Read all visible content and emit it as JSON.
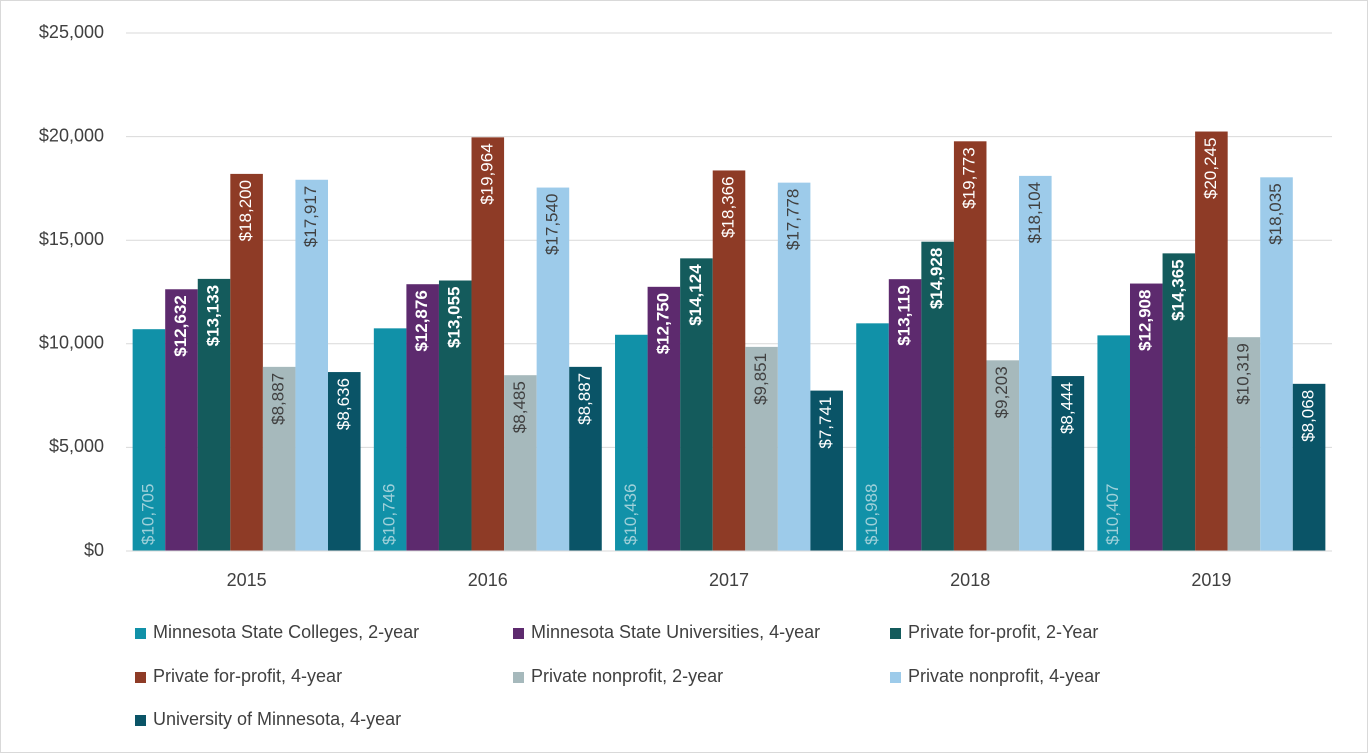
{
  "chart_data": {
    "type": "bar",
    "categories": [
      "2015",
      "2016",
      "2017",
      "2018",
      "2019"
    ],
    "ylim": [
      0,
      25000
    ],
    "yticks": [
      {
        "value": 0,
        "label": "$0"
      },
      {
        "value": 5000,
        "label": "$5,000"
      },
      {
        "value": 10000,
        "label": "$10,000"
      },
      {
        "value": 15000,
        "label": "$15,000"
      },
      {
        "value": 20000,
        "label": "$20,000"
      },
      {
        "value": 25000,
        "label": "$25,000"
      }
    ],
    "grid": true,
    "legend": "bottom",
    "series": [
      {
        "name": "Minnesota State Colleges, 2-year",
        "color": "#1191a8",
        "label_color": "#9fd0d9",
        "label_bold": false,
        "label_position": "inside_base",
        "values": [
          10705,
          10746,
          10436,
          10988,
          10407
        ],
        "value_labels": [
          "$10,705",
          "$10,746",
          "$10,436",
          "$10,988",
          "$10,407"
        ]
      },
      {
        "name": "Minnesota State Universities, 4-year",
        "color": "#5d2a6e",
        "label_color": "#ffffff",
        "label_bold": true,
        "label_position": "inside_end",
        "values": [
          12632,
          12876,
          12750,
          13119,
          12908
        ],
        "value_labels": [
          "$12,632",
          "$12,876",
          "$12,750",
          "$13,119",
          "$12,908"
        ]
      },
      {
        "name": "Private for-profit, 2-Year",
        "color": "#145b5c",
        "label_color": "#ffffff",
        "label_bold": true,
        "label_position": "inside_end",
        "values": [
          13133,
          13055,
          14124,
          14928,
          14365
        ],
        "value_labels": [
          "$13,133",
          "$13,055",
          "$14,124",
          "$14,928",
          "$14,365"
        ]
      },
      {
        "name": "Private for-profit, 4-year",
        "color": "#8e3b26",
        "label_color": "#ffffff",
        "label_bold": false,
        "label_position": "inside_end",
        "values": [
          18200,
          19964,
          18366,
          19773,
          20245
        ],
        "value_labels": [
          "$18,200",
          "$19,964",
          "$18,366",
          "$19,773",
          "$20,245"
        ]
      },
      {
        "name": "Private nonprofit, 2-year",
        "color": "#a6b9bc",
        "label_color": "#404040",
        "label_bold": false,
        "label_position": "inside_end",
        "values": [
          8887,
          8485,
          9851,
          9203,
          10319
        ],
        "value_labels": [
          "$8,887",
          "$8,485",
          "$9,851",
          "$9,203",
          "$10,319"
        ]
      },
      {
        "name": "Private nonprofit, 4-year",
        "color": "#9dcbea",
        "label_color": "#404040",
        "label_bold": false,
        "label_position": "inside_end",
        "values": [
          17917,
          17540,
          17778,
          18104,
          18035
        ],
        "value_labels": [
          "$17,917",
          "$17,540",
          "$17,778",
          "$18,104",
          "$18,035"
        ]
      },
      {
        "name": "University of Minnesota, 4-year",
        "color": "#0a5467",
        "label_color": "#ffffff",
        "label_bold": false,
        "label_position": "inside_end",
        "values": [
          8636,
          8887,
          7741,
          8444,
          8068
        ],
        "value_labels": [
          "$8,636",
          "$8,887",
          "$7,741",
          "$8,444",
          "$8,068"
        ]
      }
    ]
  }
}
